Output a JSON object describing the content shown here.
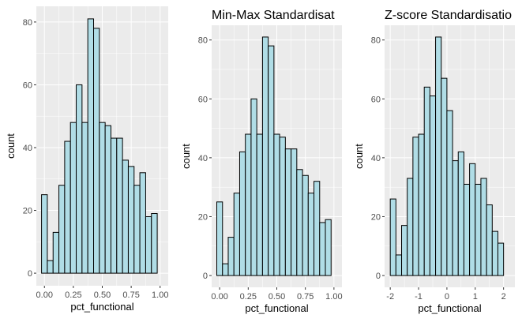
{
  "chart_data": [
    {
      "type": "bar",
      "title": "",
      "xlabel": "pct_functional",
      "ylabel": "count",
      "xlim": [
        -0.07,
        1.07
      ],
      "ylim": [
        -4,
        85
      ],
      "xticks": [
        0.0,
        0.25,
        0.5,
        0.75,
        1.0
      ],
      "xtick_labels": [
        "0.00",
        "0.25",
        "0.50",
        "0.75",
        "1.00"
      ],
      "yticks": [
        0,
        20,
        40,
        60,
        80
      ],
      "ytick_labels": [
        "0",
        "20",
        "40",
        "60",
        "80"
      ],
      "bin_start": -0.025,
      "bin_width": 0.05,
      "values": [
        25,
        4,
        13,
        28,
        42,
        48,
        60,
        48,
        81,
        78,
        48,
        47,
        43,
        43,
        36,
        34,
        28,
        32,
        18,
        19
      ],
      "bar_fill": "#b0dde6",
      "bar_stroke": "#000000",
      "panel_bg": "#ebebeb",
      "grid": true,
      "legend": "none"
    },
    {
      "type": "bar",
      "title": "Min-Max Standardisat",
      "xlabel": "pct_functional",
      "ylabel": "count",
      "xlim": [
        -0.07,
        1.07
      ],
      "ylim": [
        -4,
        85
      ],
      "xticks": [
        0.0,
        0.25,
        0.5,
        0.75,
        1.0
      ],
      "xtick_labels": [
        "0.00",
        "0.25",
        "0.50",
        "0.75",
        "1.00"
      ],
      "yticks": [
        0,
        20,
        40,
        60,
        80
      ],
      "ytick_labels": [
        "0",
        "20",
        "40",
        "60",
        "80"
      ],
      "bin_start": -0.025,
      "bin_width": 0.05,
      "values": [
        25,
        4,
        13,
        28,
        42,
        48,
        60,
        48,
        81,
        78,
        48,
        47,
        43,
        43,
        36,
        34,
        28,
        32,
        18,
        19
      ],
      "bar_fill": "#b0dde6",
      "bar_stroke": "#000000",
      "panel_bg": "#ebebeb",
      "grid": true,
      "legend": "none"
    },
    {
      "type": "bar",
      "title": "Z-score Standardisatio",
      "xlabel": "pct_functional",
      "ylabel": "count",
      "xlim": [
        -2.2,
        2.4
      ],
      "ylim": [
        -4,
        85
      ],
      "xticks": [
        -2,
        -1,
        0,
        1,
        2
      ],
      "xtick_labels": [
        "-2",
        "-1",
        "0",
        "1",
        "2"
      ],
      "yticks": [
        0,
        20,
        40,
        60,
        80
      ],
      "ytick_labels": [
        "0",
        "20",
        "40",
        "60",
        "80"
      ],
      "bin_start": -2.0,
      "bin_width": 0.2,
      "values": [
        26,
        7,
        17,
        33,
        47,
        48,
        64,
        61,
        81,
        67,
        56,
        39,
        42,
        31,
        38,
        31,
        33,
        24,
        15,
        11
      ],
      "bar_fill": "#b0dde6",
      "bar_stroke": "#000000",
      "panel_bg": "#ebebeb",
      "grid": true,
      "legend": "none"
    }
  ]
}
